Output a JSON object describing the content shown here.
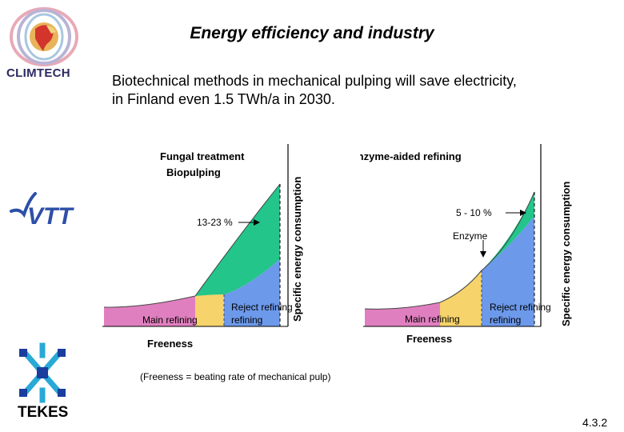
{
  "header": {
    "title": "Energy efficiency and industry",
    "subtitle_line1": "Biotechnical methods in mechanical pulping will save electricity,",
    "subtitle_line2": "in Finland even 1.5 TWh/a in 2030."
  },
  "logos": {
    "climtech": "CLIMTECH",
    "vtt": "VTT",
    "tekes": "TEKES"
  },
  "footnote": "(Freeness = beating rate of mechanical pulp)",
  "slide_number": "4.3.2",
  "colors": {
    "main_refining": "#e07fbf",
    "reject_refining": "#f6d36b",
    "envelope": "#6c99ea",
    "saving": "#23c58a"
  },
  "chart_data": [
    {
      "type": "area",
      "title": "Fungal treatment",
      "title_line2": "Biopulping",
      "xlabel": "Freeness",
      "ylabel": "Specific energy consumption",
      "regions": [
        "Main refining",
        "Reject refining"
      ],
      "saving_label": "13-23 %",
      "saving_percent_range": [
        13,
        23
      ],
      "x_direction": "freeness decreases to the right (more refining)"
    },
    {
      "type": "area",
      "title": "Enzyme-aided refining",
      "xlabel": "Freeness",
      "ylabel": "Specific energy consumption",
      "regions": [
        "Main refining",
        "Reject refining"
      ],
      "saving_label": "5 - 10 %",
      "saving_percent_range": [
        5,
        10
      ],
      "annotation": "Enzyme",
      "x_direction": "freeness decreases to the right (more refining)"
    }
  ]
}
